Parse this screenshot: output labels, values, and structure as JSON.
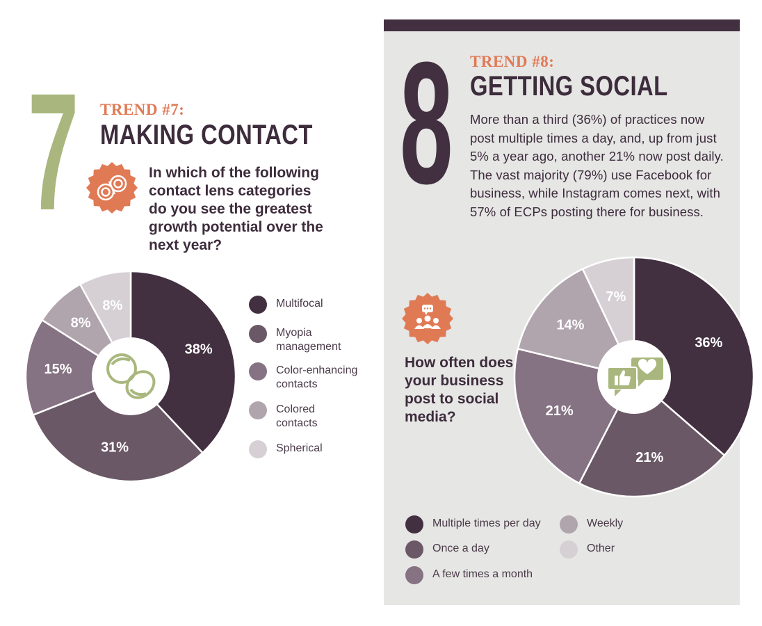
{
  "trend7": {
    "number": "7",
    "label": "TREND #7:",
    "title": "MAKING CONTACT",
    "question": "In which of the following contact lens categories do you see the greatest growth potential over the next year?",
    "badge_icon": "contact-lens-case-icon",
    "center_icon": "contact-lenses-icon",
    "colors": {
      "number": "#a9b77e",
      "label": "#e07a55",
      "title": "#3d2c3c",
      "badge": "#e07a55",
      "icon": "#a9b77e"
    }
  },
  "trend8": {
    "number": "8",
    "label": "TREND #8:",
    "title": "GETTING SOCIAL",
    "body": "More than a third (36%) of practices now post multiple times a day, and, up from just 5% a year ago, another 21% now post daily. The vast majority (79%) use Facebook for business, while Instagram comes next, with 57% of ECPs posting there for business.",
    "question": "How often does your business post to social media?",
    "badge_icon": "social-group-chat-icon",
    "center_icon": "like-and-heart-bubbles-icon",
    "colors": {
      "panel": "#e6e6e5",
      "bar": "#423040",
      "number": "#423040",
      "badge": "#e07a55",
      "icon": "#a9b77e"
    }
  },
  "chart_data": [
    {
      "type": "pie",
      "style": "donut",
      "categories": [
        "Multifocal",
        "Myopia management",
        "Color-enhancing contacts",
        "Colored contacts",
        "Spherical"
      ],
      "values": [
        38,
        31,
        15,
        8,
        8
      ],
      "labels": [
        "38%",
        "31%",
        "15%",
        "8%",
        "8%"
      ],
      "colors": [
        "#423040",
        "#6b5866",
        "#857282",
        "#b0a4ad",
        "#d6d0d4"
      ],
      "label_colors": [
        "#ffffff",
        "#ffffff",
        "#ffffff",
        "#ffffff",
        "#ffffff"
      ],
      "start": "top, clockwise",
      "legend": {
        "position": "right",
        "entries": [
          "Multifocal",
          "Myopia management",
          "Color-enhancing contacts",
          "Colored contacts",
          "Spherical"
        ]
      }
    },
    {
      "type": "pie",
      "style": "donut",
      "categories": [
        "Multiple times per day",
        "Once a day",
        "A few times a month",
        "Weekly",
        "Other"
      ],
      "values": [
        36,
        21,
        21,
        14,
        7
      ],
      "labels": [
        "36%",
        "21%",
        "21%",
        "14%",
        "7%"
      ],
      "colors": [
        "#423040",
        "#6b5866",
        "#857282",
        "#b0a4ad",
        "#d6d0d4"
      ],
      "label_colors": [
        "#ffffff",
        "#ffffff",
        "#ffffff",
        "#ffffff",
        "#ffffff"
      ],
      "start": "top, clockwise",
      "legend": {
        "position": "bottom",
        "entries": [
          "Multiple times per day",
          "Once a day",
          "A few times a month",
          "Weekly",
          "Other"
        ]
      }
    }
  ]
}
